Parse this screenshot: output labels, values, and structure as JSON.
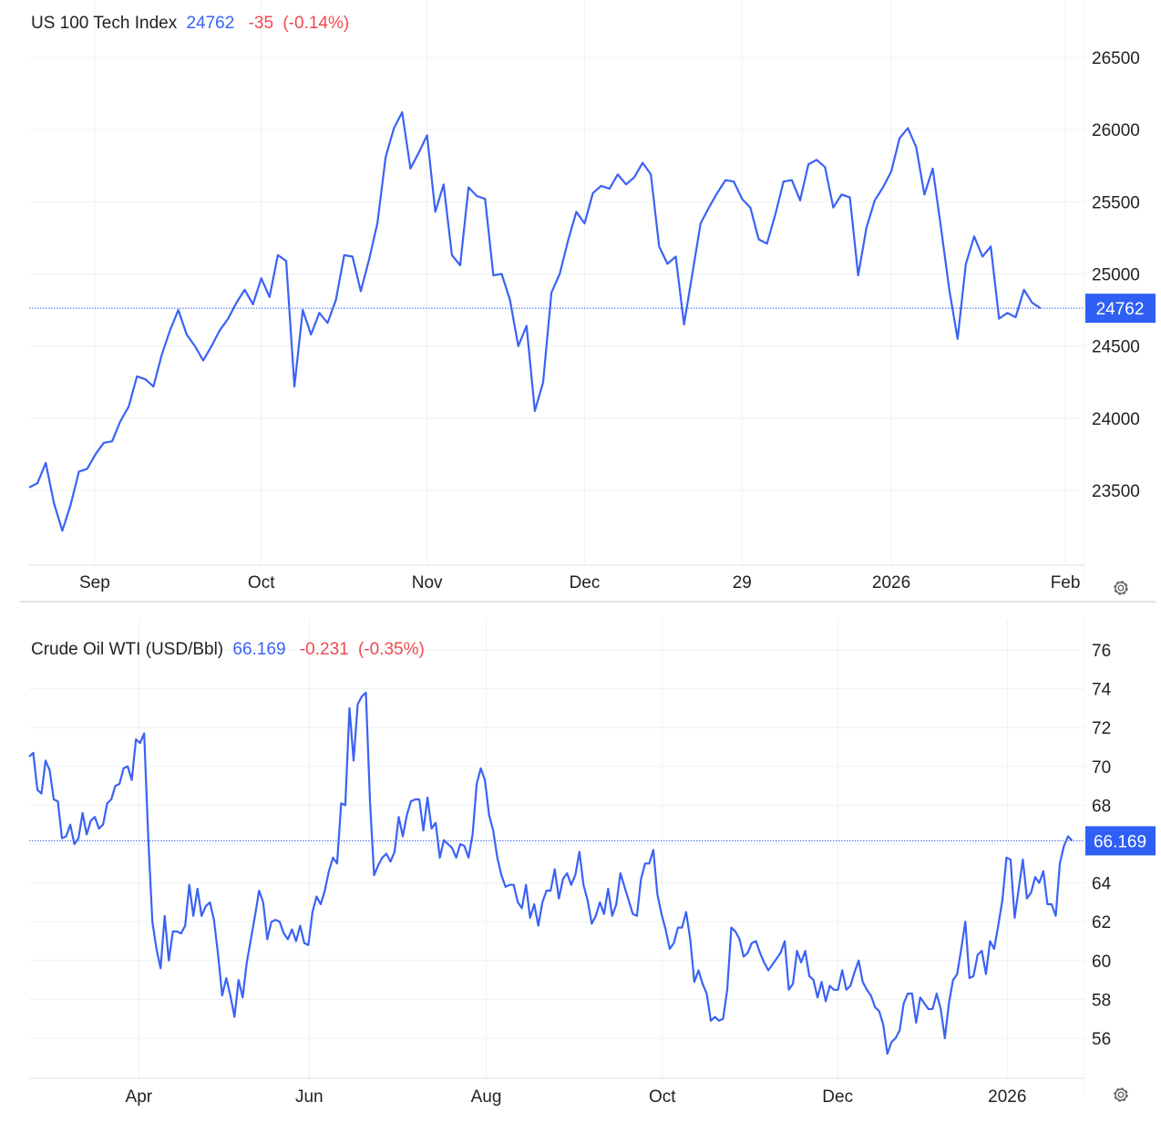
{
  "colors": {
    "line": "#3a62f5",
    "price": "#3a62f5",
    "change": "#f0484e",
    "label_bg": "#2f5ff5",
    "text": "#222222"
  },
  "chart_data": [
    {
      "type": "line",
      "title": "US 100 Tech Index",
      "last_value": "24762",
      "change": "-35",
      "change_pct": "(-0.14%)",
      "last_label": "24762",
      "last": 24762,
      "ylim": [
        23500,
        26500
      ],
      "yticks": [
        26500,
        26000,
        25500,
        25000,
        24500,
        24000,
        23500
      ],
      "ytick_labels": [
        "26500",
        "26000",
        "25500",
        "25000",
        "24500",
        "24000",
        "23500"
      ],
      "xlim": [
        0,
        127.3
      ],
      "xticks": [
        7.9,
        28,
        48,
        67,
        86,
        104,
        125
      ],
      "xtick_labels": [
        "Sep",
        "Oct",
        "Nov",
        "Dec",
        "29",
        "2026",
        "Feb"
      ],
      "grid": true,
      "values": [
        23520,
        23550,
        23690,
        23410,
        23220,
        23400,
        23630,
        23650,
        23750,
        23830,
        23840,
        23980,
        24080,
        24290,
        24270,
        24220,
        24440,
        24610,
        24750,
        24580,
        24500,
        24400,
        24500,
        24610,
        24690,
        24800,
        24890,
        24790,
        24970,
        24840,
        25130,
        25090,
        24220,
        24750,
        24580,
        24730,
        24660,
        24820,
        25130,
        25120,
        24880,
        25100,
        25350,
        25810,
        26010,
        26120,
        25730,
        25840,
        25960,
        25430,
        25620,
        25130,
        25060,
        25600,
        25540,
        25520,
        24990,
        25000,
        24820,
        24500,
        24640,
        24050,
        24250,
        24870,
        25000,
        25230,
        25430,
        25350,
        25560,
        25610,
        25590,
        25690,
        25620,
        25670,
        25770,
        25690,
        25190,
        25070,
        25120,
        24650,
        25000,
        25350,
        25460,
        25560,
        25650,
        25640,
        25520,
        25460,
        25240,
        25210,
        25410,
        25640,
        25650,
        25510,
        25760,
        25790,
        25740,
        25460,
        25550,
        25530,
        24990,
        25320,
        25510,
        25600,
        25710,
        25940,
        26010,
        25880,
        25550,
        25730,
        25320,
        24890,
        24550,
        25070,
        25260,
        25120,
        25190,
        24690,
        24730,
        24700,
        24890,
        24800,
        24762
      ]
    },
    {
      "type": "line",
      "title": "Crude Oil WTI (USD/Bbl)",
      "last_value": "66.169",
      "change": "-0.231",
      "change_pct": "(-0.35%)",
      "last_label": "66.169",
      "last": 66.169,
      "ylim": [
        56,
        76
      ],
      "yticks": [
        76,
        74,
        72,
        70,
        68,
        66,
        64,
        62,
        60,
        58,
        56
      ],
      "ytick_labels": [
        "76",
        "74",
        "72",
        "70",
        "68",
        "",
        "64",
        "62",
        "60",
        "58",
        "56"
      ],
      "xlim": [
        0,
        257
      ],
      "xticks": [
        26.7,
        68.2,
        111.3,
        154.2,
        196.9,
        238.2
      ],
      "xtick_labels": [
        "Apr",
        "Jun",
        "Aug",
        "Oct",
        "Dec",
        "2026"
      ],
      "grid": true,
      "values": [
        70.5,
        70.7,
        68.8,
        68.6,
        70.3,
        69.8,
        68.3,
        68.2,
        66.3,
        66.4,
        67.0,
        66.0,
        66.3,
        67.6,
        66.5,
        67.2,
        67.4,
        66.8,
        67.0,
        68.1,
        68.3,
        69.0,
        69.1,
        69.9,
        70.0,
        69.3,
        71.4,
        71.2,
        71.7,
        66.3,
        62.0,
        60.6,
        59.6,
        62.3,
        60.0,
        61.5,
        61.5,
        61.4,
        61.8,
        63.9,
        62.3,
        63.7,
        62.3,
        62.8,
        63.0,
        62.1,
        60.3,
        58.2,
        59.1,
        58.2,
        57.1,
        59.0,
        58.1,
        59.9,
        61.1,
        62.3,
        63.6,
        63.0,
        61.1,
        62.0,
        62.1,
        62.0,
        61.4,
        61.1,
        61.6,
        61.0,
        61.8,
        60.9,
        60.8,
        62.5,
        63.3,
        62.9,
        63.6,
        64.6,
        65.3,
        65.0,
        68.1,
        68.0,
        73.0,
        70.3,
        73.2,
        73.6,
        73.8,
        68.2,
        64.4,
        64.9,
        65.3,
        65.5,
        65.1,
        65.6,
        67.4,
        66.4,
        67.5,
        68.2,
        68.3,
        68.3,
        66.7,
        68.4,
        66.8,
        67.1,
        65.3,
        66.2,
        66.0,
        65.8,
        65.3,
        66.0,
        65.9,
        65.3,
        66.5,
        69.1,
        69.9,
        69.3,
        67.5,
        66.7,
        65.3,
        64.4,
        63.8,
        63.9,
        63.9,
        63.0,
        62.7,
        63.9,
        62.2,
        62.9,
        61.8,
        63.0,
        63.6,
        63.6,
        64.7,
        63.2,
        64.2,
        64.5,
        63.9,
        64.4,
        65.6,
        63.9,
        63.1,
        61.9,
        62.3,
        63.0,
        62.4,
        63.7,
        62.3,
        62.9,
        64.5,
        63.8,
        63.1,
        62.4,
        62.3,
        64.2,
        65.0,
        65.0,
        65.7,
        63.4,
        62.4,
        61.6,
        60.6,
        60.9,
        61.7,
        61.7,
        62.5,
        61.1,
        58.9,
        59.5,
        58.8,
        58.3,
        56.9,
        57.1,
        56.9,
        57.0,
        58.5,
        61.7,
        61.5,
        61.1,
        60.2,
        60.4,
        60.9,
        61.0,
        60.4,
        59.9,
        59.5,
        59.8,
        60.1,
        60.4,
        61.0,
        58.5,
        58.8,
        60.5,
        59.9,
        60.5,
        59.2,
        59.0,
        58.1,
        58.9,
        57.9,
        58.7,
        58.5,
        58.5,
        59.5,
        58.5,
        58.7,
        59.4,
        60.0,
        58.9,
        58.5,
        58.2,
        57.6,
        57.4,
        56.7,
        55.2,
        55.8,
        56.0,
        56.4,
        57.8,
        58.3,
        58.3,
        56.8,
        58.1,
        57.8,
        57.5,
        57.5,
        58.3,
        57.5,
        56.0,
        57.8,
        59.0,
        59.3,
        60.6,
        62.0,
        59.1,
        59.2,
        60.3,
        60.5,
        59.3,
        61.0,
        60.6,
        61.8,
        63.1,
        65.3,
        65.2,
        62.2,
        63.7,
        65.2,
        63.2,
        63.5,
        64.3,
        64.0,
        64.6,
        62.9,
        62.9,
        62.3,
        65.0,
        65.9,
        66.4,
        66.169
      ]
    }
  ],
  "icons": {
    "settings": "gear-icon"
  }
}
